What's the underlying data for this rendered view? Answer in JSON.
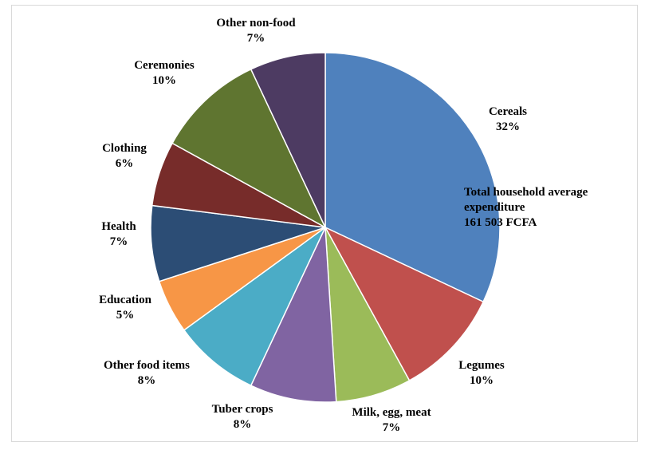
{
  "chart_data": {
    "type": "pie",
    "title": "",
    "annotation": [
      "Total household average",
      "expenditure",
      "161 503 FCFA"
    ],
    "slices": [
      {
        "name": "Cereals",
        "value": 32,
        "label": "32%",
        "color": "#4F81BD"
      },
      {
        "name": "Legumes",
        "value": 10,
        "label": "10%",
        "color": "#C0504D"
      },
      {
        "name": "Milk, egg, meat",
        "value": 7,
        "label": "7%",
        "color": "#9BBB59"
      },
      {
        "name": "Tuber crops",
        "value": 8,
        "label": "8%",
        "color": "#8064A2"
      },
      {
        "name": "Other food items",
        "value": 8,
        "label": "8%",
        "color": "#4BACC6"
      },
      {
        "name": "Education",
        "value": 5,
        "label": "5%",
        "color": "#F79646"
      },
      {
        "name": "Health",
        "value": 7,
        "label": "7%",
        "color": "#2C4D75"
      },
      {
        "name": "Clothing",
        "value": 6,
        "label": "6%",
        "color": "#772C2A"
      },
      {
        "name": "Ceremonies",
        "value": 10,
        "label": "10%",
        "color": "#5F7530"
      },
      {
        "name": "Other non-food",
        "value": 7,
        "label": "7%",
        "color": "#4D3B62"
      }
    ]
  }
}
